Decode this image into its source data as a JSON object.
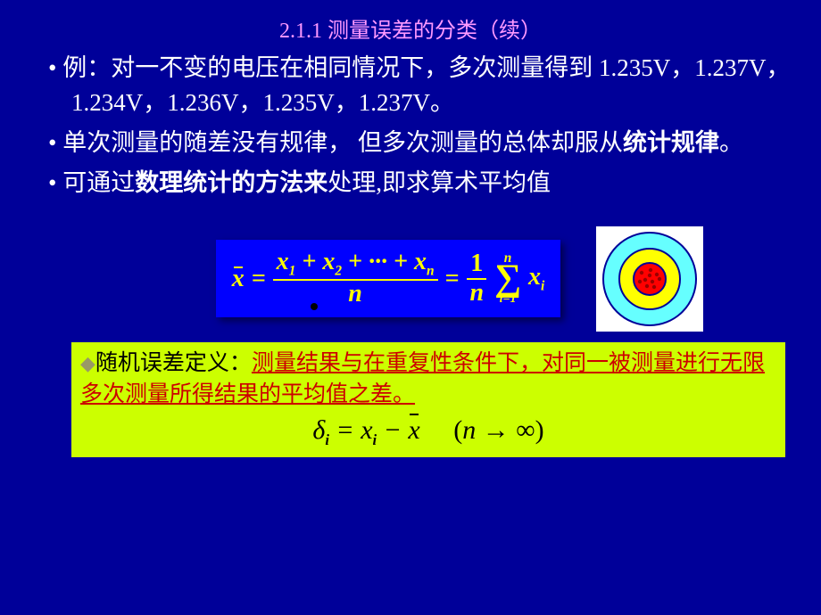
{
  "title": {
    "text": "2.1.1 测量误差的分类（续）",
    "color": "#ff99ff"
  },
  "bullets": {
    "color": "#ffffff",
    "b1": "• 例：对一不变的电压在相同情况下，多次测量得到 1.235V，1.237V，1.234V，1.236V，1.235V，1.237V。",
    "b2a": "• 单次测量的随差没有规律，  但多次测量的总体却服从",
    "b2b": "统计规律",
    "b2c": "。",
    "b3a": "• 可通过",
    "b3b": "数理统计的方法来",
    "b3c": "处理,即求算术平均值"
  },
  "formula": {
    "color": "#ffff00",
    "bg": "#0000ff",
    "x": "x",
    "eq": "=",
    "num_terms": "x₁ + x₂ + ··· + xₙ",
    "den_n": "n",
    "one": "1",
    "sigma": "∑",
    "sig_top": "n",
    "sig_bot": "i=1",
    "xi_x": "x",
    "xi_i": "i"
  },
  "target": {
    "outer_fill": "#66ffff",
    "mid_fill": "#ffff00",
    "inner_fill": "#ff0000",
    "stroke": "#000099",
    "dot_color": "#990000",
    "dots": [
      [
        46,
        48
      ],
      [
        56,
        45
      ],
      [
        63,
        50
      ],
      [
        50,
        56
      ],
      [
        58,
        58
      ],
      [
        66,
        55
      ],
      [
        52,
        63
      ],
      [
        60,
        64
      ],
      [
        44,
        58
      ],
      [
        55,
        51
      ]
    ]
  },
  "def": {
    "bg": "#ccff00",
    "diamond": "◆",
    "label": "随机误差定义：",
    "redtext": "测量结果与在重复性条件下，对同一被测量进行无限多次测量所得结果的平均值之差。",
    "formula_delta": "δ",
    "formula_i": "i",
    "formula_eq": " = ",
    "formula_x": "x",
    "formula_minus": " − ",
    "formula_paren": "(n → ∞)"
  }
}
